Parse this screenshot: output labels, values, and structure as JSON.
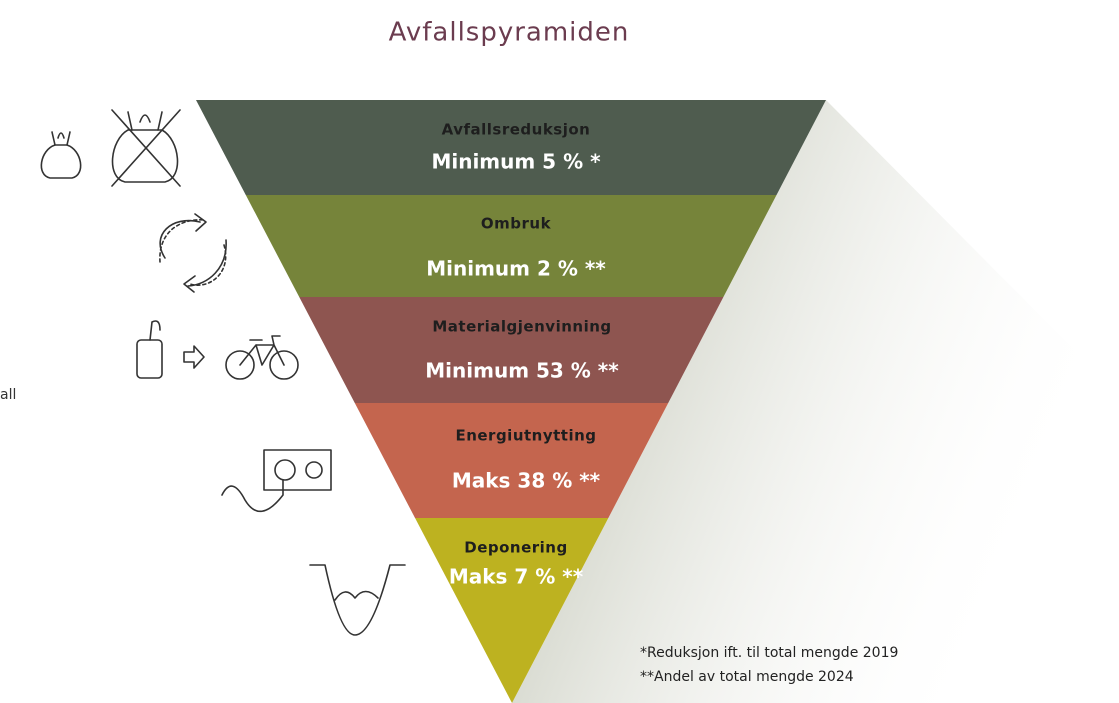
{
  "title": "Avfallspyramiden",
  "side_text": "all",
  "levels": [
    {
      "name": "Avfallsreduksjon",
      "label": "Minimum 5 % *"
    },
    {
      "name": "Ombruk",
      "label": "Minimum 2 % **"
    },
    {
      "name": "Materialgjenvinning",
      "label": "Minimum 53 % **"
    },
    {
      "name": "Energiutnytting",
      "label": "Maks 38 % **"
    },
    {
      "name": "Deponering",
      "label": "Maks 7 % **"
    }
  ],
  "footnotes": [
    "*Reduksjon ift. til total mengde 2019",
    "**Andel av total mengde 2024"
  ]
}
